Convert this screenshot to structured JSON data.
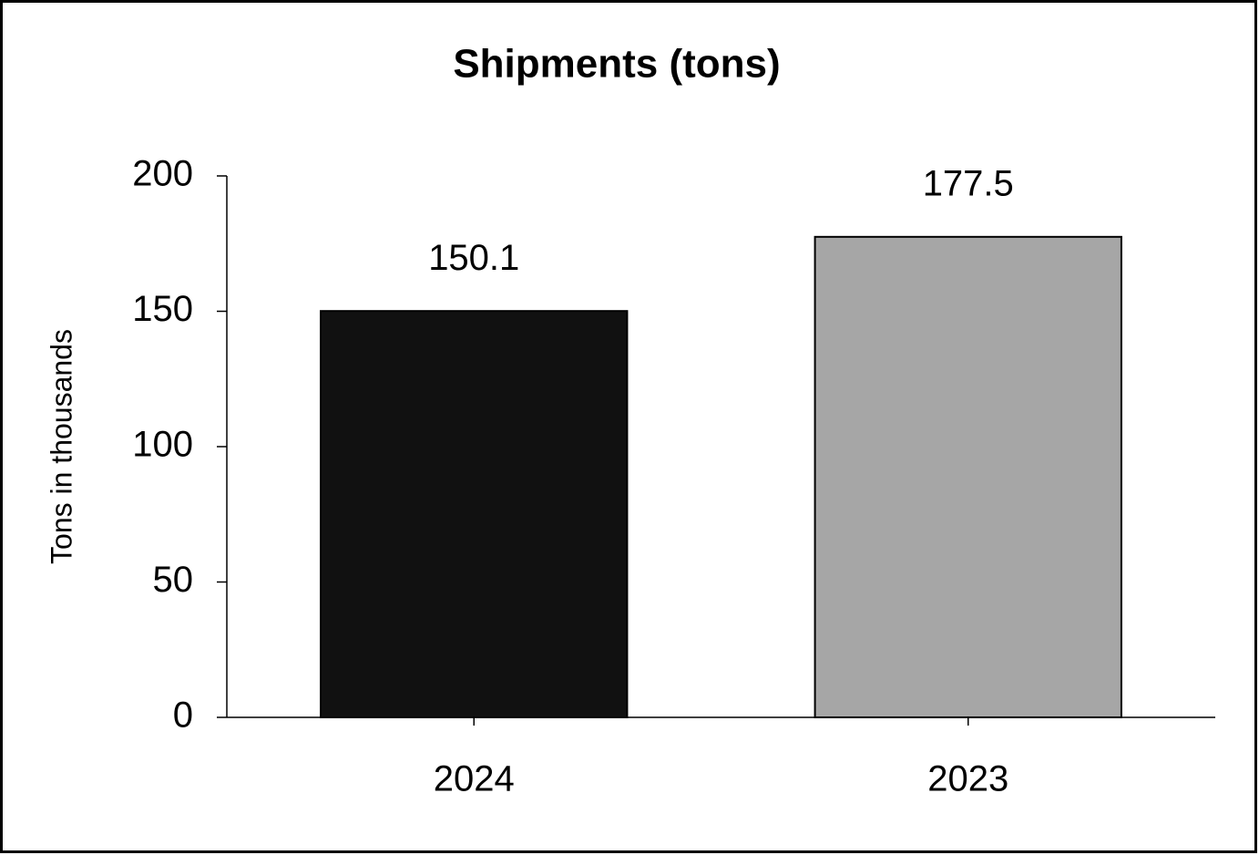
{
  "chart_data": {
    "type": "bar",
    "title": "Shipments (tons)",
    "y_label": "Tons in thousands",
    "categories": [
      "2024",
      "2023"
    ],
    "values": [
      150.1,
      177.5
    ],
    "colors": [
      "#111111",
      "#a6a6a6"
    ],
    "ylim": [
      0,
      200
    ],
    "yticks": [
      0,
      50,
      100,
      150,
      200
    ],
    "grid": false
  }
}
